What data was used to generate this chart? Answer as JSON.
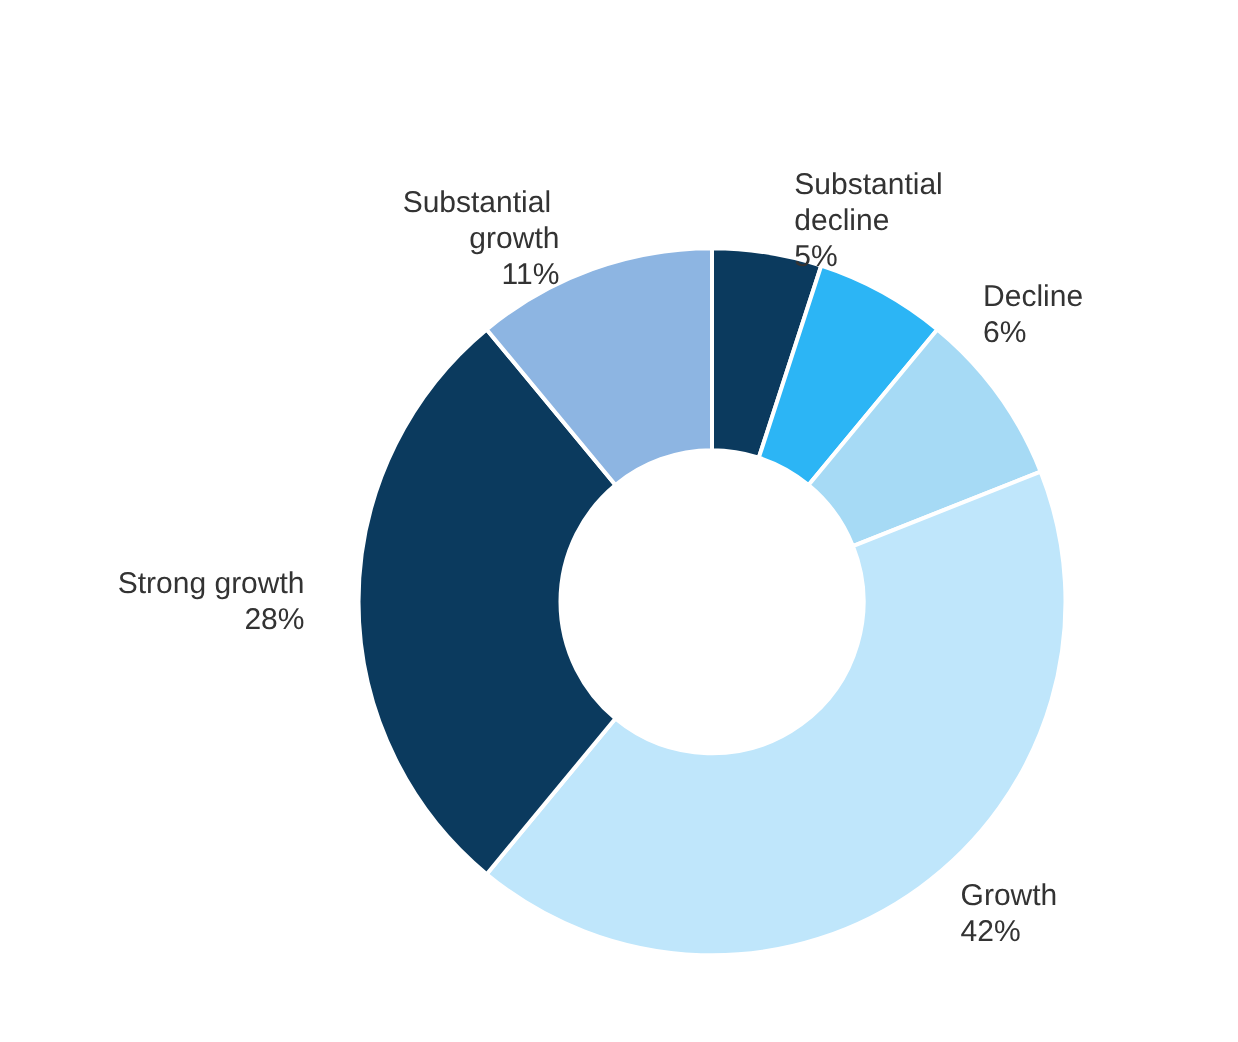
{
  "chart_data": {
    "type": "donut",
    "categories": [
      "Substantial decline",
      "Decline",
      null,
      "Growth",
      "Strong growth",
      "Substantial growth"
    ],
    "values": [
      5,
      6,
      8,
      42,
      28,
      11
    ],
    "value_labels": [
      "5%",
      "6%",
      null,
      "42%",
      "28%",
      "11%"
    ],
    "colors": [
      "#0b3a5e",
      "#2cb5f5",
      "#a6daf5",
      "#bfe6fb",
      "#0b3a5e",
      "#8db5e2"
    ],
    "legend": false
  }
}
